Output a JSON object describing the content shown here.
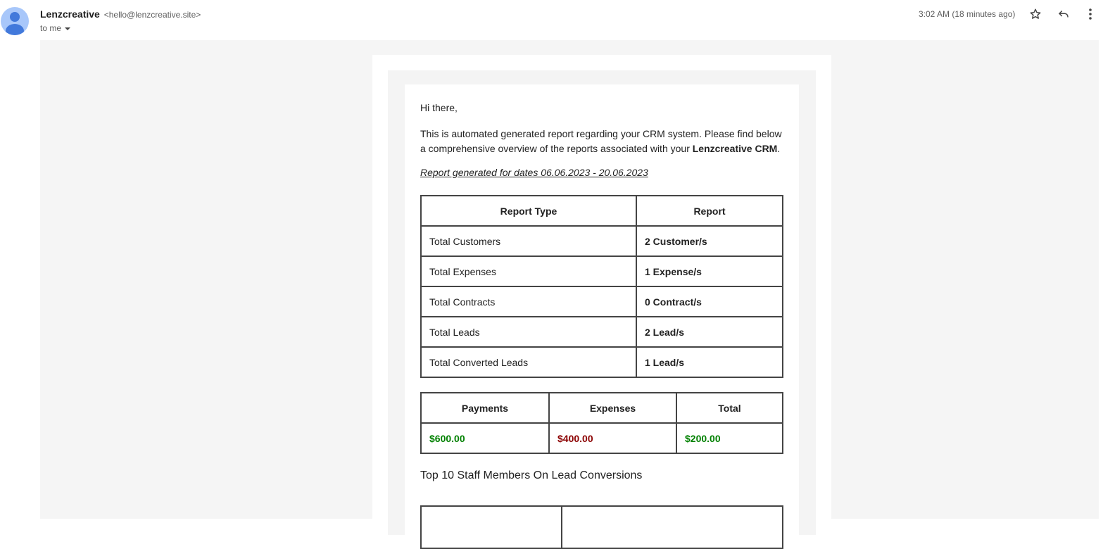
{
  "header": {
    "sender_name": "Lenzcreative",
    "sender_email": "<hello@lenzcreative.site>",
    "recipient": "to me",
    "time": "3:02 AM (18 minutes ago)"
  },
  "body": {
    "greeting": "Hi there,",
    "intro": "This is automated generated report regarding your CRM system. Please find below a comprehensive overview of the reports associated with your ",
    "intro_bold": "Lenzcreative CRM",
    "intro_end": ".",
    "date_range": "Report generated for dates 06.06.2023 - 20.06.2023",
    "report_table": {
      "headers": [
        "Report Type",
        "Report"
      ],
      "rows": [
        [
          "Total Customers",
          "2 Customer/s"
        ],
        [
          "Total Expenses",
          "1 Expense/s"
        ],
        [
          "Total Contracts",
          "0 Contract/s"
        ],
        [
          "Total Leads",
          "2 Lead/s"
        ],
        [
          "Total Converted Leads",
          "1 Lead/s"
        ]
      ]
    },
    "finance_table": {
      "headers": [
        "Payments",
        "Expenses",
        "Total"
      ],
      "values": [
        "$600.00",
        "$400.00",
        "$200.00"
      ],
      "colors": [
        "#008000",
        "#8b0000",
        "#008000"
      ]
    },
    "staff_heading": "Top 10 Staff Members On Lead Conversions"
  }
}
